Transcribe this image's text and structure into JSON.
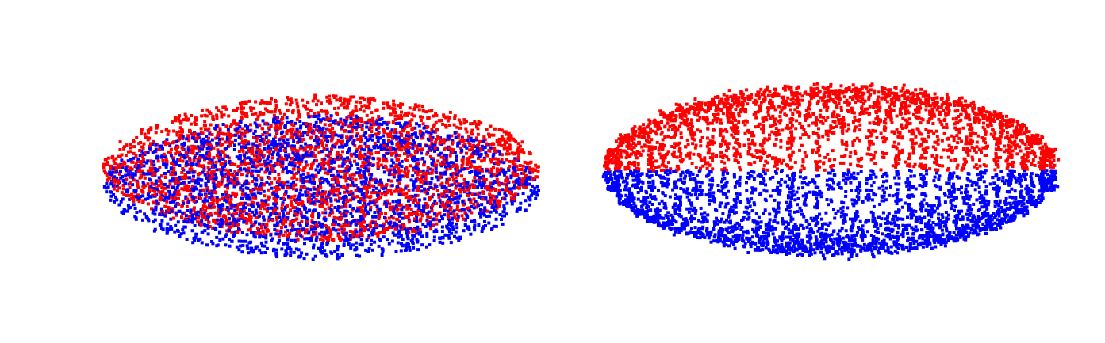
{
  "chart_data": [
    {
      "type": "scatter",
      "title": "",
      "xlabel": "",
      "ylabel": "",
      "grid": false,
      "axes_visible": false,
      "arrangement": "random",
      "series": [
        {
          "color": "#ff0000",
          "points": 2600
        },
        {
          "color": "#0000ff",
          "points": 2400
        }
      ]
    },
    {
      "type": "scatter",
      "title": "",
      "xlabel": "",
      "ylabel": "",
      "grid": false,
      "axes_visible": false,
      "arrangement": "rings",
      "series": [
        {
          "color": "#ff0000",
          "points": 2500
        },
        {
          "color": "#0000ff",
          "points": 2500
        }
      ]
    }
  ]
}
